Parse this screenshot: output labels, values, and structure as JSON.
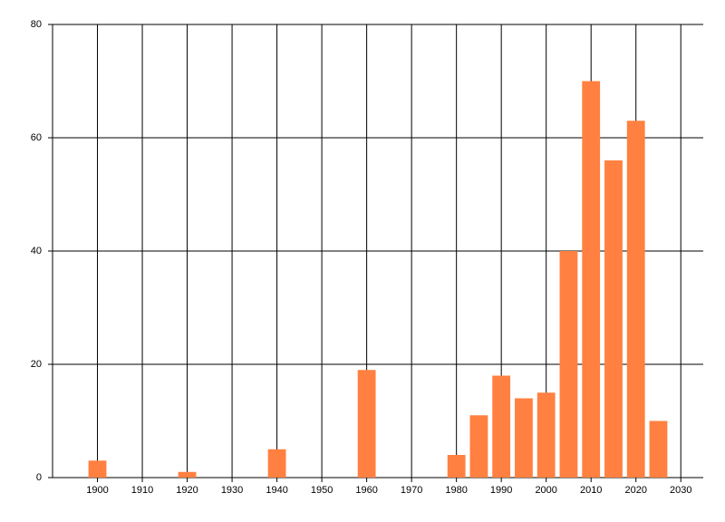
{
  "chart_data": {
    "type": "bar",
    "x": [
      1900,
      1920,
      1940,
      1960,
      1980,
      1985,
      1990,
      1995,
      2000,
      2005,
      2010,
      2015,
      2020,
      2025
    ],
    "values": [
      3,
      1,
      5,
      19,
      4,
      11,
      18,
      14,
      15,
      40,
      70,
      56,
      63,
      10
    ],
    "color": "#ff8040",
    "xlim": [
      1890,
      2035
    ],
    "xticks": [
      1900,
      1910,
      1920,
      1930,
      1940,
      1950,
      1960,
      1970,
      1980,
      1990,
      2000,
      2010,
      2020,
      2030
    ],
    "ylim": [
      0,
      80
    ],
    "yticks": [
      0,
      20,
      40,
      60,
      80
    ],
    "grid": true
  }
}
